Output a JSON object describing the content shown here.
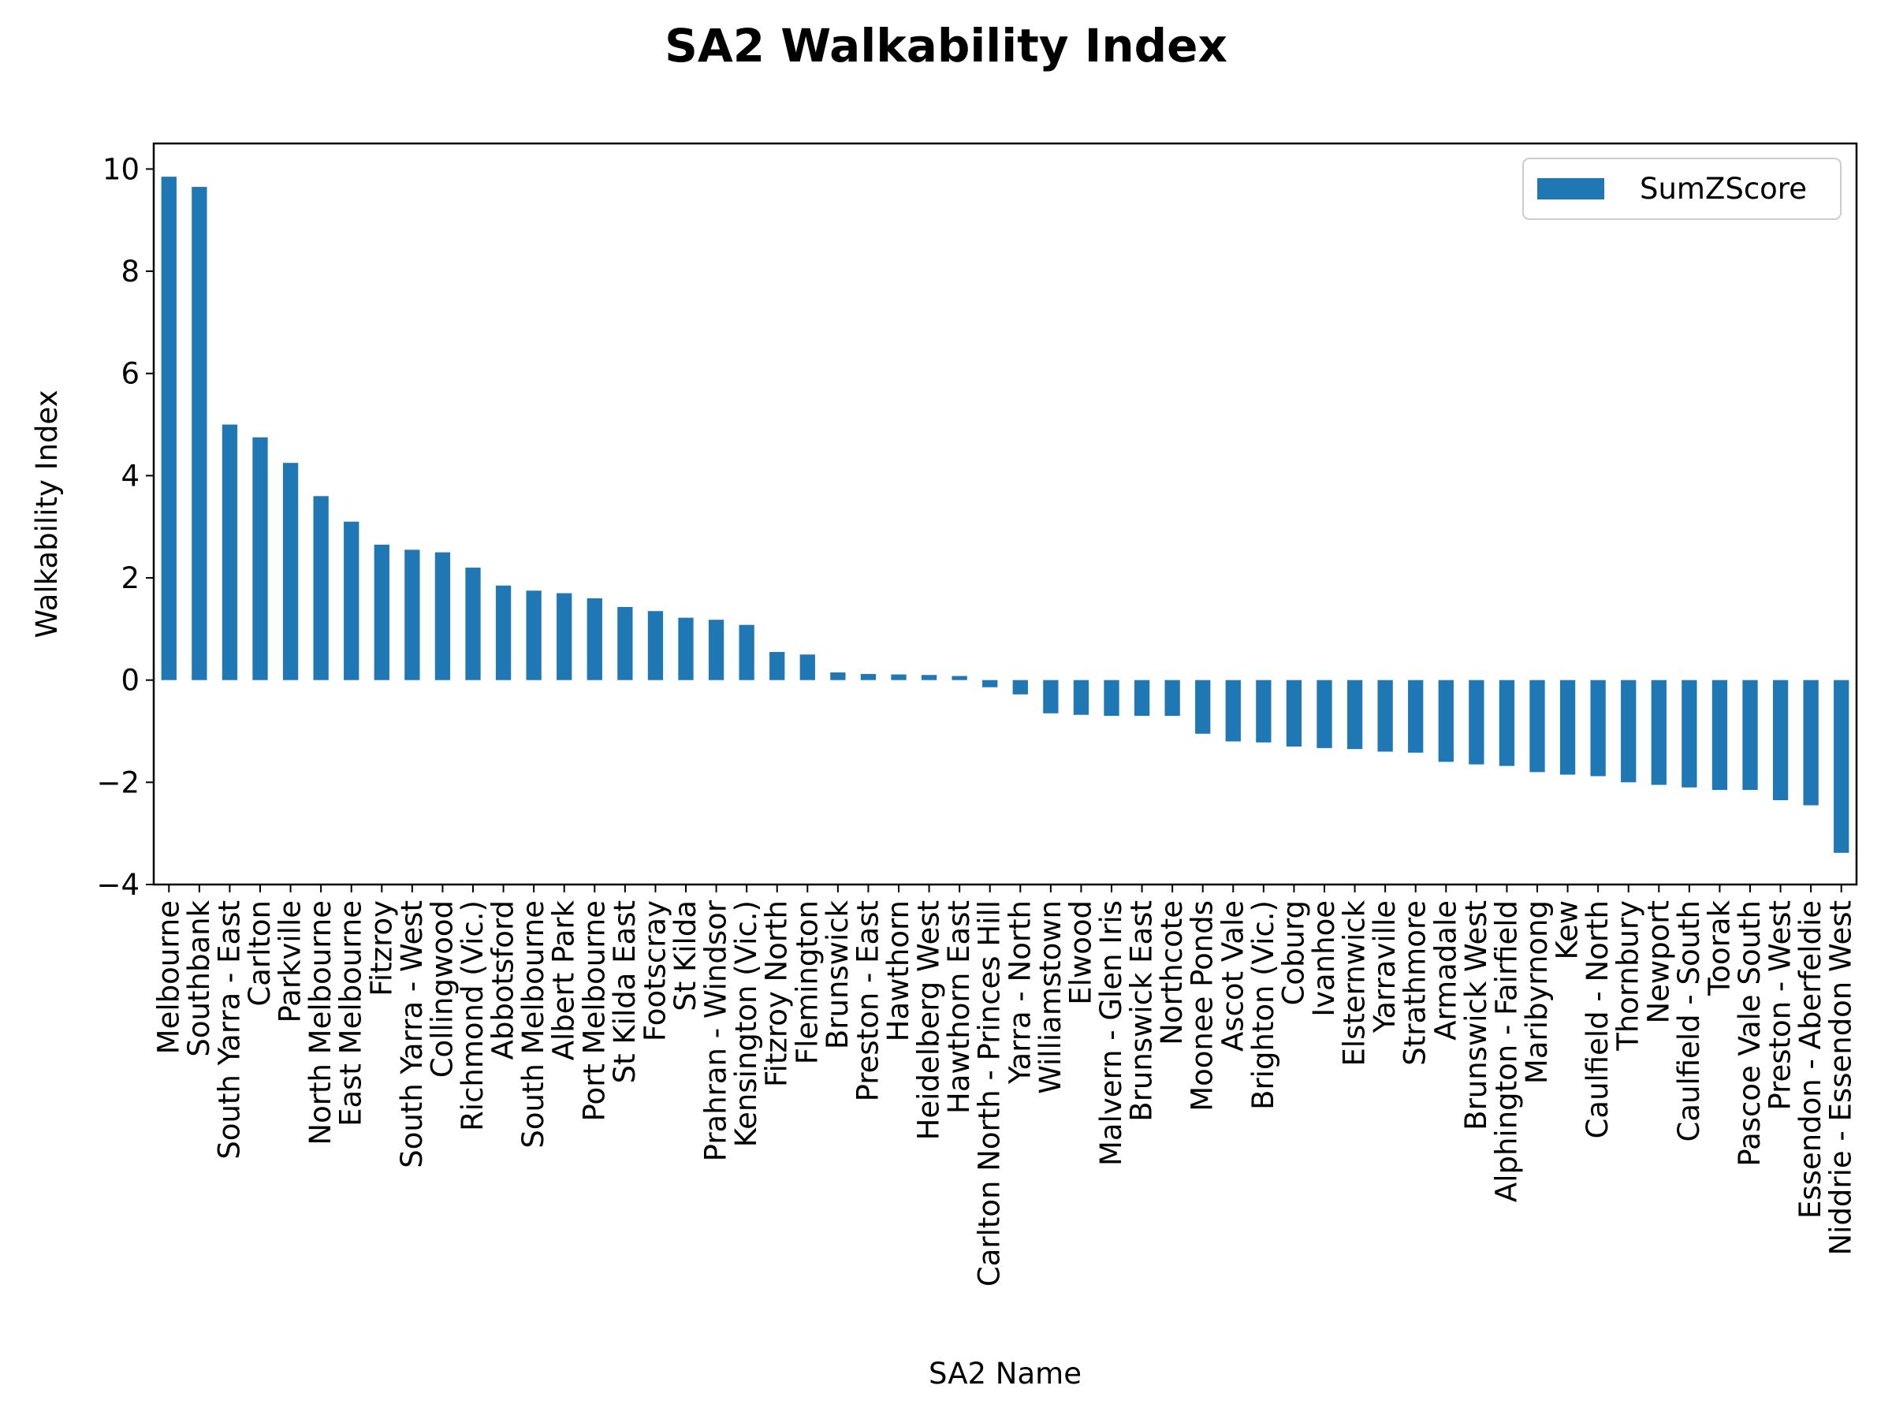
{
  "chart_data": {
    "type": "bar",
    "title": "SA2 Walkability Index",
    "xlabel": "SA2 Name",
    "ylabel": "Walkability Index",
    "ylim": [
      -4.0,
      10.5
    ],
    "yticks": [
      10,
      8,
      6,
      4,
      2,
      0,
      -2,
      -4
    ],
    "ytick_labels": [
      "10",
      "8",
      "6",
      "4",
      "2",
      "0",
      "−2",
      "−4"
    ],
    "grid": false,
    "legend": "upper right",
    "bar_color": "#1f77b4",
    "categories": [
      "Melbourne",
      "Southbank",
      "South Yarra - East",
      "Carlton",
      "Parkville",
      "North Melbourne",
      "East Melbourne",
      "Fitzroy",
      "South Yarra - West",
      "Collingwood",
      "Richmond (Vic.)",
      "Abbotsford",
      "South Melbourne",
      "Albert Park",
      "Port Melbourne",
      "St Kilda East",
      "Footscray",
      "St Kilda",
      "Prahran - Windsor",
      "Kensington (Vic.)",
      "Fitzroy North",
      "Flemington",
      "Brunswick",
      "Preston - East",
      "Hawthorn",
      "Heidelberg West",
      "Hawthorn East",
      "Carlton North - Princes Hill",
      "Yarra - North",
      "Williamstown",
      "Elwood",
      "Malvern - Glen Iris",
      "Brunswick East",
      "Northcote",
      "Moonee Ponds",
      "Ascot Vale",
      "Brighton (Vic.)",
      "Coburg",
      "Ivanhoe",
      "Elsternwick",
      "Yarraville",
      "Strathmore",
      "Armadale",
      "Brunswick West",
      "Alphington - Fairfield",
      "Maribyrnong",
      "Kew",
      "Caulfield - North",
      "Thornbury",
      "Newport",
      "Caulfield - South",
      "Toorak",
      "Pascoe Vale South",
      "Preston - West",
      "Essendon - Aberfeldie",
      "Niddrie - Essendon West"
    ],
    "series": [
      {
        "name": "SumZScore",
        "values": [
          9.85,
          9.65,
          5.0,
          4.75,
          4.25,
          3.6,
          3.1,
          2.65,
          2.55,
          2.5,
          2.2,
          1.85,
          1.75,
          1.7,
          1.6,
          1.43,
          1.35,
          1.22,
          1.18,
          1.08,
          0.55,
          0.5,
          0.15,
          0.12,
          0.11,
          0.1,
          0.08,
          -0.14,
          -0.28,
          -0.65,
          -0.68,
          -0.7,
          -0.7,
          -0.7,
          -1.05,
          -1.2,
          -1.22,
          -1.3,
          -1.33,
          -1.35,
          -1.4,
          -1.42,
          -1.6,
          -1.65,
          -1.68,
          -1.8,
          -1.85,
          -1.88,
          -2.0,
          -2.05,
          -2.1,
          -2.15,
          -2.15,
          -2.35,
          -2.45,
          -3.38
        ]
      }
    ]
  }
}
